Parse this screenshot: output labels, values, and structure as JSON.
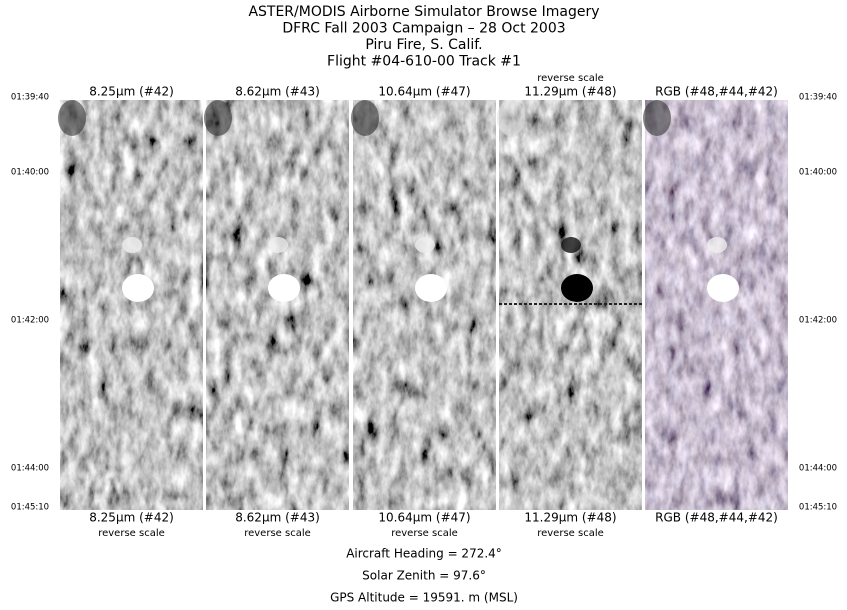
{
  "header": {
    "lines": [
      "ASTER/MODIS Airborne Simulator Browse Imagery",
      "DFRC Fall 2003 Campaign – 28 Oct 2003",
      "Piru Fire, S. Calif.",
      "Flight #04-610-00 Track #1"
    ]
  },
  "panels": [
    {
      "label_top": "8.25μm (#42)",
      "label_bottom": "8.25μm (#42)",
      "bottom_note": "reverse scale"
    },
    {
      "label_top": "8.62μm (#43)",
      "label_bottom": "8.62μm (#43)",
      "bottom_note": "reverse scale"
    },
    {
      "label_top": "10.64μm (#47)",
      "label_bottom": "10.64μm (#47)",
      "bottom_note": "reverse scale"
    },
    {
      "top_note": "reverse scale",
      "label_top": "11.29μm (#48)",
      "label_bottom": "11.29μm (#48)",
      "bottom_note": "reverse scale"
    },
    {
      "label_top": "RGB (#48,#44,#42)",
      "label_bottom": "RGB (#48,#44,#42)"
    }
  ],
  "time_labels": {
    "left": [
      "01:39:40",
      "01:40:00",
      "01:42:00",
      "01:44:00",
      "01:45:10"
    ],
    "right": [
      "01:39:40",
      "01:40:00",
      "01:42:00",
      "01:44:00",
      "01:45:10"
    ]
  },
  "footer": {
    "lines": [
      "Aircraft Heading =  272.4°",
      "Solar Zenith =   97.6°",
      "GPS Altitude =  19591. m (MSL)"
    ]
  }
}
